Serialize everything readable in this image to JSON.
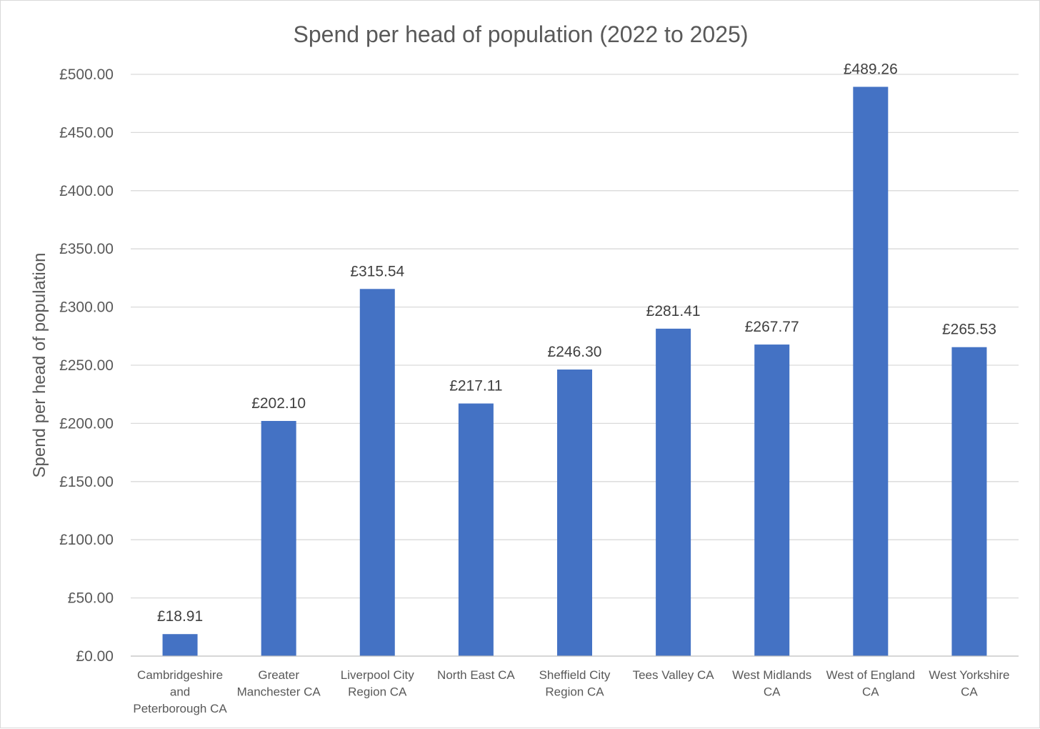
{
  "chart_data": {
    "type": "bar",
    "title": "Spend per head of population (2022 to 2025)",
    "xlabel": "",
    "ylabel": "Spend per head of population",
    "ylim": [
      0,
      500
    ],
    "ytick_step": 50,
    "ytick_labels": [
      "£0.00",
      "£50.00",
      "£100.00",
      "£150.00",
      "£200.00",
      "£250.00",
      "£300.00",
      "£350.00",
      "£400.00",
      "£450.00",
      "£500.00"
    ],
    "categories": [
      [
        "Cambridgeshire",
        "and",
        "Peterborough CA"
      ],
      [
        "Greater",
        "Manchester CA"
      ],
      [
        "Liverpool City",
        "Region CA"
      ],
      [
        "North East CA"
      ],
      [
        "Sheffield City",
        "Region CA"
      ],
      [
        "Tees Valley CA"
      ],
      [
        "West Midlands",
        "CA"
      ],
      [
        "West of England",
        "CA"
      ],
      [
        "West Yorkshire",
        "CA"
      ]
    ],
    "values": [
      18.91,
      202.1,
      315.54,
      217.11,
      246.3,
      281.41,
      267.77,
      489.26,
      265.53
    ],
    "data_labels": [
      "£18.91",
      "£202.10",
      "£315.54",
      "£217.11",
      "£246.30",
      "£281.41",
      "£267.77",
      "£489.26",
      "£265.53"
    ],
    "bar_color": "#4472c4",
    "grid": true,
    "legend": "none"
  }
}
